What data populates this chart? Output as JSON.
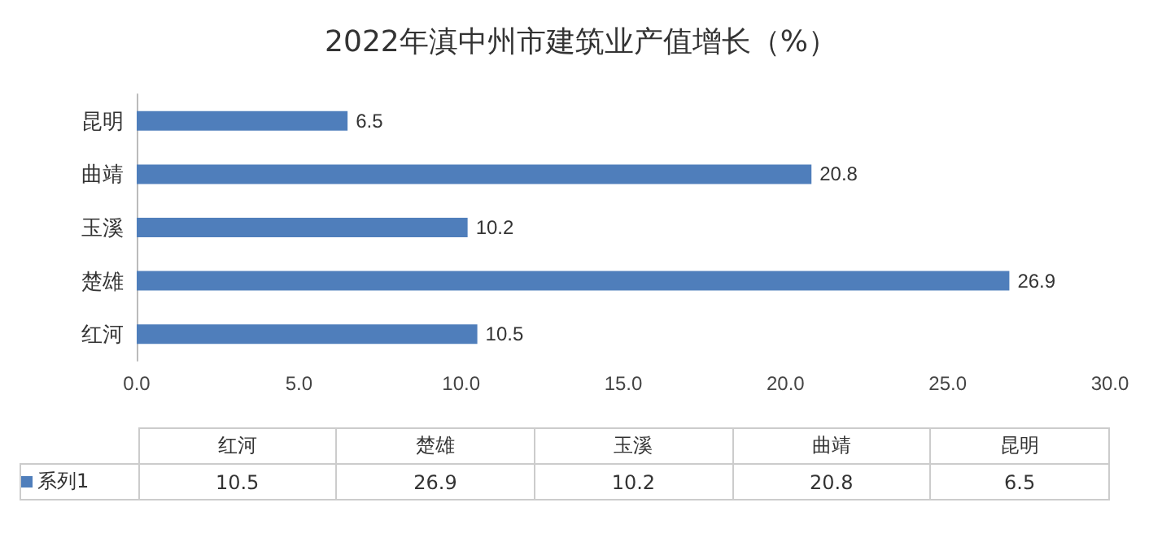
{
  "chart_data": [
    {
      "type": "bar",
      "orientation": "horizontal",
      "title": "2022年滇中州市建筑业产值增长（%）",
      "categories": [
        "昆明",
        "曲靖",
        "玉溪",
        "楚雄",
        "红河"
      ],
      "series": [
        {
          "color": "#4f7ebb",
          "values": [
            6.5,
            20.8,
            10.2,
            26.9,
            10.5
          ]
        }
      ],
      "xlim": [
        0,
        30
      ],
      "xticks": [
        {
          "value": 0,
          "label": "0.0"
        },
        {
          "value": 5,
          "label": "5.0"
        },
        {
          "value": 10,
          "label": "10.0"
        },
        {
          "value": 15,
          "label": "15.0"
        },
        {
          "value": 20,
          "label": "20.0"
        },
        {
          "value": 25,
          "label": "25.0"
        },
        {
          "value": 30,
          "label": "30.0"
        }
      ],
      "data_labels": true,
      "grid": false
    },
    {
      "type": "other",
      "categories": [
        "红河",
        "楚雄",
        "玉溪",
        "曲靖",
        "昆明"
      ],
      "series": [
        {
          "name": "系列1",
          "color": "#4f7ebb",
          "values": [
            10.5,
            26.9,
            10.2,
            20.8,
            6.5
          ]
        }
      ],
      "data_labels": true,
      "legend": "left"
    }
  ]
}
